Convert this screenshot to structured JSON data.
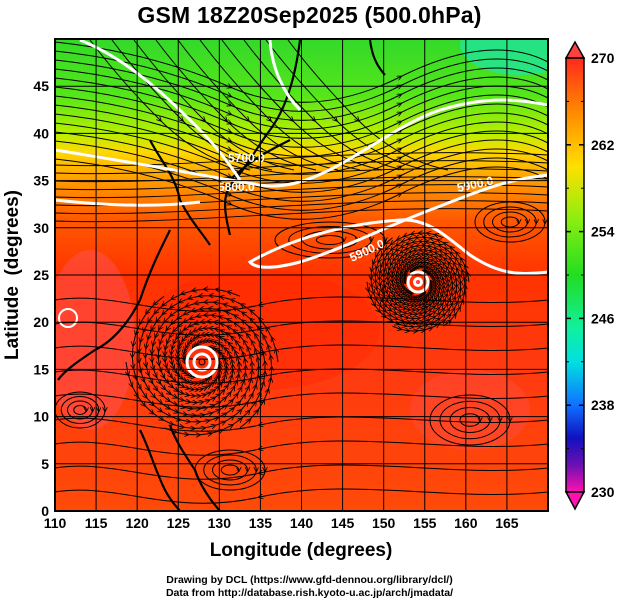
{
  "title": "GSM 18Z20Sep2025 (500.0hPa)",
  "map": {
    "lon_range": [
      110,
      170
    ],
    "lat_range": [
      0,
      50
    ],
    "lon_ticks": [
      110,
      115,
      120,
      125,
      130,
      135,
      140,
      145,
      150,
      155,
      160,
      165
    ],
    "lat_ticks": [
      0,
      5,
      10,
      15,
      20,
      25,
      30,
      35,
      40,
      45
    ],
    "xlabel": "Longitude (degrees)",
    "ylabel": "Latitude  (degrees)",
    "grid": true,
    "shaded_field": "temperature",
    "overlay": "streamlines"
  },
  "contours": [
    {
      "label": "5700.0"
    },
    {
      "label": "5800.0"
    },
    {
      "label": "5900.0"
    },
    {
      "label": "5900.0"
    }
  ],
  "colorbar": {
    "min": 230,
    "max": 270,
    "tick_labels": [
      "270",
      "262",
      "254",
      "246",
      "238",
      "230"
    ],
    "colors": {
      "270": "#ff2a1a",
      "262": "#ffe000",
      "254": "#22dd22",
      "246": "#00e0e0",
      "238": "#1010c0",
      "230": "#ff10b0"
    }
  },
  "credits": {
    "line1": "Drawing by DCL (https://www.gfd-dennou.org/library/dcl/)",
    "line2": "Data from http://database.rish.kyoto-u.ac.jp/arch/jmadata/"
  }
}
